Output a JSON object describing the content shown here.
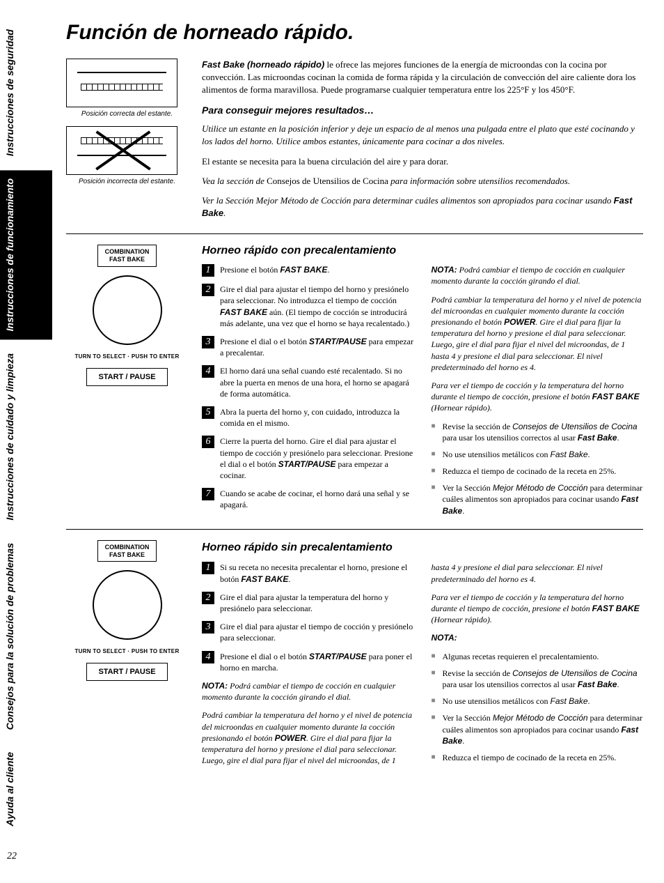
{
  "tabs": [
    "Instrucciones de seguridad",
    "Instrucciones de funcionamiento",
    "Instrucciones de cuidado y limpieza",
    "Consejos para la solución de problemas",
    "Ayuda al cliente"
  ],
  "title": "Función de horneado rápido.",
  "shelf": {
    "correct": "Posición correcta del estante.",
    "incorrect": "Posición incorrecta del estante."
  },
  "intro": {
    "p1a": "Fast Bake (horneado rápido)",
    "p1b": " le ofrece las mejores funciones de la energía de microondas con la cocina por convección. Las microondas cocinan la comida de forma rápida y la circulación de convección del aire caliente dora los alimentos de forma maravillosa. Puede programarse cualquier temperatura entre los 225°F y los 450°F.",
    "sub": "Para conseguir mejores resultados…",
    "p2": "Utilice un estante en la posición inferior y deje un espacio de al menos una pulgada entre el plato que esté cocinando y los lados del horno. Utilice ambos estantes, únicamente para cocinar a dos niveles.",
    "p3": "El estante se necesita para la buena circulación del aire y para dorar.",
    "p4a": "Vea la sección de ",
    "p4b": "Consejos de Utensilios de Cocina",
    "p4c": " para información sobre utensilios recomendados.",
    "p5a": "Ver la Sección Mejor Método de Cocción para determinar cuáles alimentos son apropiados para cocinar usando ",
    "p5b": "Fast Bake",
    "p5c": "."
  },
  "controls": {
    "combo": "COMBINATION",
    "fastbake": "FAST BAKE",
    "dial": "TURN TO SELECT · PUSH TO ENTER",
    "start": "START / PAUSE"
  },
  "sec1": {
    "title": "Horneo rápido con precalentamiento",
    "steps": [
      {
        "pre": "Presione el botón ",
        "bold": "FAST BAKE",
        "post": "."
      },
      {
        "pre": "Gire el dial para ajustar el tiempo del horno y presiónelo para seleccionar. No introduzca el tiempo de cocción ",
        "bold": "FAST BAKE",
        "post": " aún. (El tiempo de cocción se introducirá más adelante, una vez que el horno se haya recalentado.)"
      },
      {
        "pre": "Presione el dial o el botón ",
        "bold": "START/PAUSE",
        "post": " para empezar a precalentar."
      },
      {
        "pre": "El horno dará una señal cuando esté recalentado. Si no abre la puerta en menos de una hora, el horno se apagará de forma automática.",
        "bold": "",
        "post": ""
      },
      {
        "pre": "Abra la puerta del horno y, con cuidado, introduzca la comida en el mismo.",
        "bold": "",
        "post": ""
      },
      {
        "pre": "Cierre la puerta del horno. Gire el dial para ajustar el tiempo de cocción y presiónelo para seleccionar. Presione el dial o el botón ",
        "bold": "START/PAUSE",
        "post": " para empezar a cocinar."
      },
      {
        "pre": "Cuando se acabe de cocinar, el horno dará una señal y se apagará.",
        "bold": "",
        "post": ""
      }
    ],
    "note1a": "NOTA:",
    "note1b": " Podrá cambiar el tiempo de cocción en cualquier momento durante la cocción girando el dial.",
    "note2a": "Podrá cambiar la temperatura del horno y el nivel de potencia del microondas en cualquier momento durante la cocción presionando el botón ",
    "note2b": "POWER",
    "note2c": ". Gire el dial para fijar la temperatura del horno y presione el dial para seleccionar. Luego, gire el dial para fijar el nivel del microondas, de 1 hasta 4 y presione el dial para seleccionar. El nivel predeterminado del horno es 4.",
    "note3a": "Para ver el tiempo de cocción y la temperatura del horno durante el tiempo de cocción, presione el botón ",
    "note3b": "FAST BAKE",
    "note3c": " (Hornear rápido).",
    "bullets": [
      {
        "a": "Revise la sección de ",
        "b": "Consejos de Utensilios de Cocina",
        "c": " para usar los utensilios correctos al usar ",
        "d": "Fast Bake",
        "e": "."
      },
      {
        "a": "No use utensilios metálicos con ",
        "b": "Fast Bake",
        "c": ".",
        "d": "",
        "e": ""
      },
      {
        "a": "Reduzca el tiempo de cocinado de la receta en 25%.",
        "b": "",
        "c": "",
        "d": "",
        "e": ""
      },
      {
        "a": "Ver la Sección ",
        "b": "Mejor Método de Cocción",
        "c": " para determinar cuáles alimentos son apropiados para cocinar usando ",
        "d": "Fast Bake",
        "e": "."
      }
    ]
  },
  "sec2": {
    "title": "Horneo rápido sin precalentamiento",
    "steps": [
      {
        "pre": "Si su receta no necesita precalentar el horno, presione el botón ",
        "bold": "FAST BAKE",
        "post": "."
      },
      {
        "pre": "Gire el dial para ajustar la temperatura del horno y presiónelo para seleccionar.",
        "bold": "",
        "post": ""
      },
      {
        "pre": "Gire el dial para ajustar el tiempo de cocción y presiónelo para seleccionar.",
        "bold": "",
        "post": ""
      },
      {
        "pre": "Presione el dial o el botón ",
        "bold": "START/PAUSE",
        "post": " para poner el horno en marcha."
      }
    ],
    "n1a": "NOTA:",
    "n1b": " Podrá cambiar el tiempo de cocción en cualquier momento durante la cocción girando el dial.",
    "n2a": "Podrá cambiar la temperatura del horno y el nivel de potencia del microondas en cualquier momento durante la cocción presionando el botón ",
    "n2b": "POWER",
    "n2c": ". Gire el dial para fijar la temperatura del horno y presione el dial para seleccionar. Luego, gire el dial para fijar el nivel del microondas, de 1 ",
    "n2d": "hasta 4 y presione el dial para seleccionar. El nivel predeterminado del horno es 4.",
    "n3a": "Para ver el tiempo de cocción y la temperatura del horno durante el tiempo de cocción, presione el botón ",
    "n3b": "FAST BAKE",
    "n3c": " (Hornear rápido).",
    "notaLabel": "NOTA:",
    "bullets": [
      {
        "a": "Algunas recetas requieren el precalentamiento.",
        "b": "",
        "c": "",
        "d": "",
        "e": ""
      },
      {
        "a": "Revise la sección de ",
        "b": "Consejos de Utensilios de Cocina",
        "c": " para usar los utensilios correctos al usar ",
        "d": "Fast Bake",
        "e": "."
      },
      {
        "a": "No use utensilios metálicos con ",
        "b": "Fast Bake",
        "c": ".",
        "d": "",
        "e": ""
      },
      {
        "a": "Ver la Sección ",
        "b": "Mejor Método de Cocción",
        "c": " para determinar cuáles alimentos son apropiados para cocinar usando ",
        "d": "Fast Bake",
        "e": "."
      },
      {
        "a": "Reduzca el tiempo de cocinado de la receta en 25%.",
        "b": "",
        "c": "",
        "d": "",
        "e": ""
      }
    ]
  },
  "pageNum": "22"
}
